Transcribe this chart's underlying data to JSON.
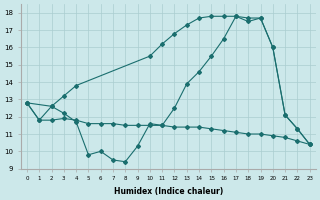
{
  "xlabel": "Humidex (Indice chaleur)",
  "bg_color": "#cce8ea",
  "grid_color": "#aacdd0",
  "line_color": "#1a6e6e",
  "xlim": [
    -0.5,
    23.5
  ],
  "ylim": [
    9,
    18.5
  ],
  "yticks": [
    9,
    10,
    11,
    12,
    13,
    14,
    15,
    16,
    17,
    18
  ],
  "xticks": [
    0,
    1,
    2,
    3,
    4,
    5,
    6,
    7,
    8,
    9,
    10,
    11,
    12,
    13,
    14,
    15,
    16,
    17,
    18,
    19,
    20,
    21,
    22,
    23
  ],
  "line1_x": [
    0,
    1,
    2,
    3,
    4,
    5,
    6,
    7,
    8,
    9,
    10,
    11,
    12,
    13,
    14,
    15,
    16,
    17,
    18,
    19,
    20,
    21,
    22,
    23
  ],
  "line1_y": [
    12.8,
    11.8,
    12.6,
    12.2,
    11.7,
    9.8,
    10.0,
    9.5,
    9.4,
    10.3,
    11.6,
    11.5,
    12.5,
    13.9,
    14.6,
    15.5,
    16.5,
    17.8,
    17.5,
    17.7,
    16.0,
    12.1,
    11.3,
    10.4
  ],
  "line2_x": [
    0,
    2,
    3,
    4,
    10,
    11,
    12,
    13,
    14,
    15,
    16,
    17,
    18,
    19,
    20,
    21,
    22,
    23
  ],
  "line2_y": [
    12.8,
    12.6,
    13.2,
    13.8,
    15.5,
    16.2,
    16.8,
    17.3,
    17.7,
    17.8,
    17.8,
    17.8,
    17.7,
    17.7,
    16.0,
    12.1,
    11.3,
    10.4
  ],
  "line3_x": [
    0,
    1,
    2,
    3,
    4,
    5,
    6,
    7,
    8,
    9,
    10,
    11,
    12,
    13,
    14,
    15,
    16,
    17,
    18,
    19,
    20,
    21,
    22,
    23
  ],
  "line3_y": [
    12.8,
    11.8,
    11.8,
    11.9,
    11.8,
    11.6,
    11.6,
    11.6,
    11.5,
    11.5,
    11.5,
    11.5,
    11.4,
    11.4,
    11.4,
    11.3,
    11.2,
    11.1,
    11.0,
    11.0,
    10.9,
    10.8,
    10.6,
    10.4
  ]
}
